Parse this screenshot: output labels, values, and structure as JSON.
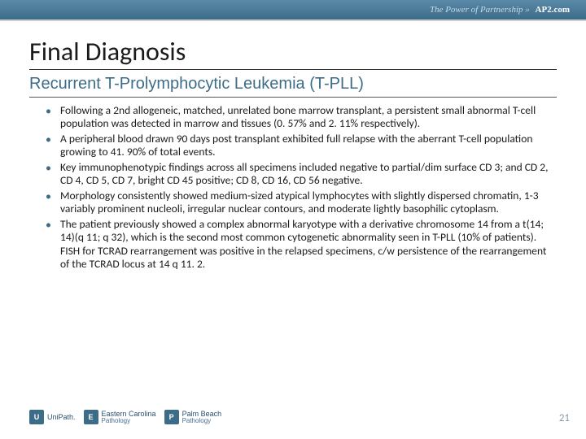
{
  "header": {
    "tagline": "The Power of Partnership »",
    "link": "AP2.com"
  },
  "title": "Final Diagnosis",
  "subtitle": "Recurrent T-Prolymphocytic Leukemia (T-PLL)",
  "bullets": [
    "Following a 2nd allogeneic, matched, unrelated bone marrow transplant, a persistent small abnormal T-cell population was detected in marrow and tissues (0. 57% and 2. 11% respectively).",
    "A peripheral blood drawn 90 days post transplant exhibited full relapse with the aberrant T-cell population growing to 41. 90% of total events.",
    "Key immunophenotypic findings across all specimens included negative to partial/dim surface CD 3; and CD 2, CD 4, CD 5, CD 7, bright CD 45 positive; CD 8, CD 16, CD 56 negative.",
    "Morphology consistently showed medium-sized atypical lymphocytes with slightly dispersed chromatin, 1-3 variably prominent nucleoli, irregular nuclear contours, and moderate lightly basophilic cytoplasm.",
    "The patient previously showed a complex abnormal karyotype with a derivative chromosome 14 from a t(14; 14)(q 11; q 32), which is the second most common cytogenetic abnormality seen in T-PLL (10% of patients). FISH for TCRAD rearrangement was positive in the relapsed specimens, c/w persistence of the rearrangement of the TCRAD locus at 14 q 11. 2."
  ],
  "logos": [
    {
      "icon": "U",
      "name": "UniPath."
    },
    {
      "icon": "E",
      "name": "Eastern Carolina",
      "sub": "Pathology"
    },
    {
      "icon": "P",
      "name": "Palm Beach",
      "sub": "Pathology"
    }
  ],
  "page_number": "21",
  "colors": {
    "header_bg_top": "#5a8aa8",
    "header_bg_bottom": "#3d6c89",
    "accent": "#3d6c89",
    "text": "#1a1a1a",
    "pagenum": "#8a9aa8"
  }
}
